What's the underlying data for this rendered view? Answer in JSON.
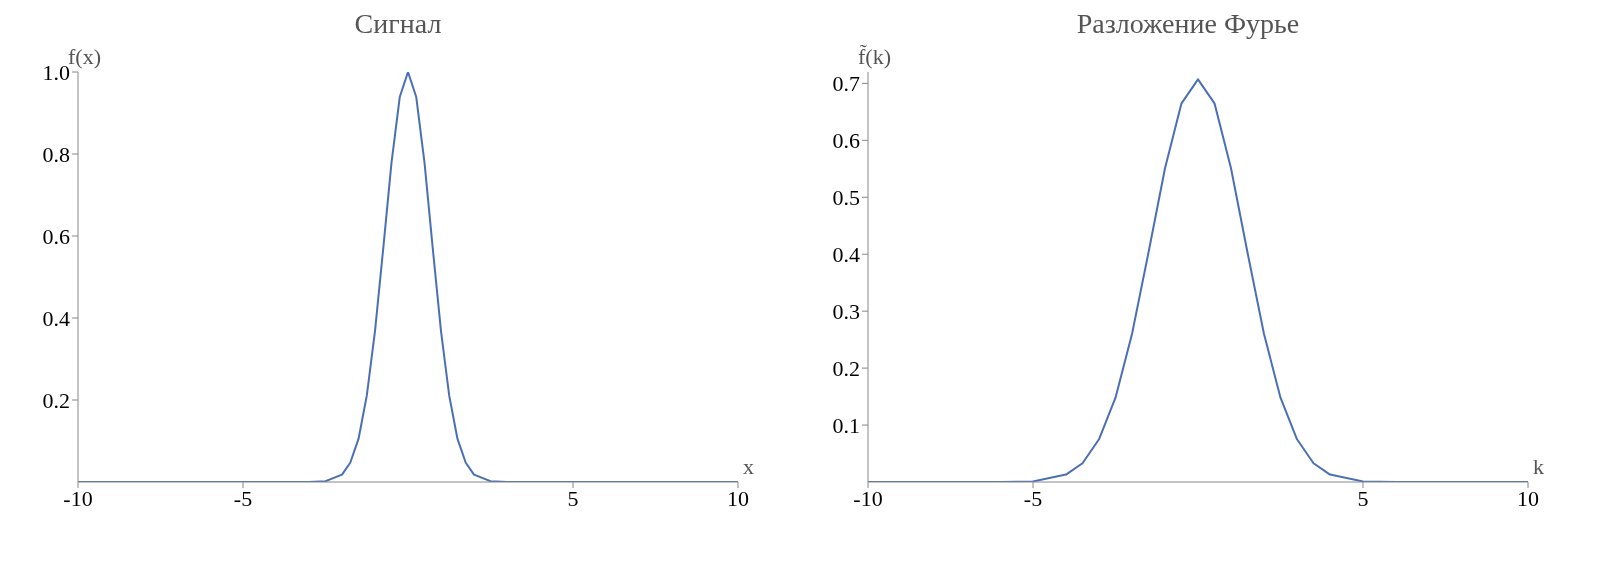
{
  "chart_data": [
    {
      "type": "line",
      "title": "Сигнал",
      "ylabel": "f(x)",
      "xlabel": "x",
      "color": "#4a6fb5",
      "xlim": [
        -10,
        10
      ],
      "ylim": [
        0,
        1.0
      ],
      "xticks": [
        -10,
        -5,
        5,
        10
      ],
      "yticks": [
        0.2,
        0.4,
        0.6,
        {
          "value": 0.8,
          "label": "0.8"
        },
        {
          "value": 1.0,
          "label": "1.0"
        }
      ],
      "x": [
        -10,
        -6,
        -4,
        -3,
        -2.5,
        -2,
        -1.75,
        -1.5,
        -1.25,
        -1,
        -0.75,
        -0.5,
        -0.25,
        0,
        0.25,
        0.5,
        0.75,
        1,
        1.25,
        1.5,
        1.75,
        2,
        2.5,
        3,
        4,
        6,
        10
      ],
      "values": [
        0,
        0,
        0,
        0,
        0.002,
        0.018,
        0.047,
        0.105,
        0.21,
        0.368,
        0.57,
        0.779,
        0.939,
        1.0,
        0.939,
        0.779,
        0.57,
        0.368,
        0.21,
        0.105,
        0.047,
        0.018,
        0.002,
        0,
        0,
        0,
        0
      ]
    },
    {
      "type": "line",
      "title": "Разложение Фурье",
      "ylabel": "f̃(k)",
      "xlabel": "k",
      "color": "#4a6fb5",
      "xlim": [
        -10,
        10
      ],
      "ylim": [
        0,
        0.72
      ],
      "xticks": [
        -10,
        -5,
        5,
        10
      ],
      "yticks": [
        0.1,
        0.2,
        0.3,
        0.4,
        0.5,
        0.6,
        0.7
      ],
      "x": [
        -10,
        -7,
        -6,
        -5,
        -4,
        -3.5,
        -3,
        -2.5,
        -2,
        -1.5,
        -1,
        -0.5,
        0,
        0.5,
        1,
        1.5,
        2,
        2.5,
        3,
        3.5,
        4,
        5,
        6,
        7,
        10
      ],
      "values": [
        0,
        0,
        0,
        0.001,
        0.013,
        0.033,
        0.075,
        0.148,
        0.26,
        0.403,
        0.551,
        0.665,
        0.707,
        0.665,
        0.551,
        0.403,
        0.26,
        0.148,
        0.075,
        0.033,
        0.013,
        0.001,
        0,
        0,
        0
      ]
    }
  ]
}
